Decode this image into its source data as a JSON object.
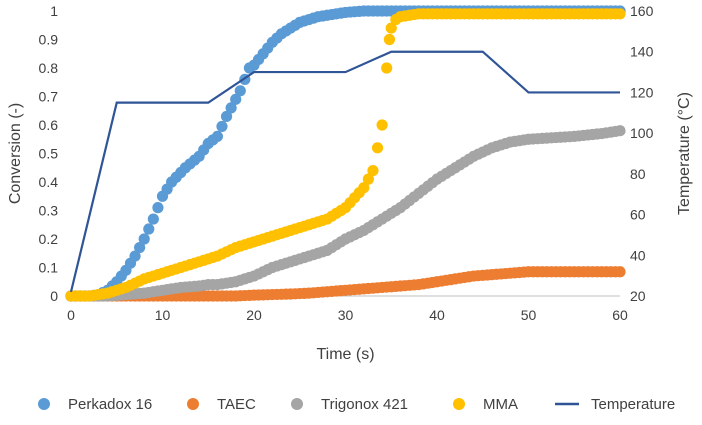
{
  "chart_data": {
    "type": "scatter",
    "xlabel": "Time (s)",
    "ylabel_left": "Conversion (-)",
    "ylabel_right": "Temperature (°C)",
    "xlim": [
      0,
      60
    ],
    "ylim_left": [
      0,
      1
    ],
    "ylim_right": [
      20,
      160
    ],
    "x_ticks": [
      "0",
      "10",
      "20",
      "30",
      "40",
      "50",
      "60"
    ],
    "y_left_ticks": [
      "0",
      "0.1",
      "0.2",
      "0.3",
      "0.4",
      "0.5",
      "0.6",
      "0.7",
      "0.8",
      "0.9",
      "1"
    ],
    "y_right_ticks": [
      "20",
      "40",
      "60",
      "80",
      "100",
      "120",
      "140",
      "160"
    ],
    "grid": false,
    "legend_position": "bottom",
    "series": [
      {
        "name": "Perkadox 16",
        "kind": "scatter",
        "axis": "left",
        "color": "#5B9BD5",
        "points": [
          [
            0,
            0
          ],
          [
            1,
            0
          ],
          [
            2,
            0
          ],
          [
            3,
            0.005
          ],
          [
            4,
            0.02
          ],
          [
            5,
            0.05
          ],
          [
            6,
            0.09
          ],
          [
            7,
            0.14
          ],
          [
            8,
            0.2
          ],
          [
            9,
            0.27
          ],
          [
            10,
            0.35
          ],
          [
            11,
            0.4
          ],
          [
            12.5,
            0.45
          ],
          [
            14,
            0.49
          ],
          [
            15,
            0.535
          ],
          [
            16,
            0.56
          ],
          [
            17,
            0.63
          ],
          [
            18.5,
            0.72
          ],
          [
            19.5,
            0.8
          ],
          [
            20,
            0.81
          ],
          [
            21,
            0.85
          ],
          [
            22,
            0.89
          ],
          [
            23,
            0.92
          ],
          [
            24,
            0.94
          ],
          [
            25,
            0.96
          ],
          [
            26,
            0.97
          ],
          [
            27,
            0.98
          ],
          [
            28,
            0.985
          ],
          [
            29,
            0.99
          ],
          [
            30,
            0.995
          ],
          [
            32,
            1
          ],
          [
            35,
            1
          ],
          [
            38,
            1
          ],
          [
            41,
            1
          ],
          [
            44,
            1
          ],
          [
            47,
            1
          ],
          [
            50,
            1
          ],
          [
            55,
            1
          ],
          [
            60,
            1
          ]
        ]
      },
      {
        "name": "TAEC",
        "kind": "scatter",
        "axis": "left",
        "color": "#ED7D31",
        "points": [
          [
            0,
            0
          ],
          [
            2,
            0
          ],
          [
            4,
            0
          ],
          [
            6,
            0
          ],
          [
            8,
            0
          ],
          [
            10,
            0
          ],
          [
            12,
            0
          ],
          [
            14,
            0
          ],
          [
            16,
            0
          ],
          [
            18,
            0
          ],
          [
            20,
            0.003
          ],
          [
            22,
            0.005
          ],
          [
            24,
            0.007
          ],
          [
            26,
            0.01
          ],
          [
            28,
            0.015
          ],
          [
            30,
            0.02
          ],
          [
            32,
            0.025
          ],
          [
            34,
            0.03
          ],
          [
            36,
            0.035
          ],
          [
            38,
            0.04
          ],
          [
            40,
            0.05
          ],
          [
            42,
            0.06
          ],
          [
            44,
            0.07
          ],
          [
            46,
            0.075
          ],
          [
            48,
            0.08
          ],
          [
            50,
            0.085
          ],
          [
            55,
            0.085
          ],
          [
            60,
            0.085
          ]
        ]
      },
      {
        "name": "Trigonox 421",
        "kind": "scatter",
        "axis": "left",
        "color": "#A5A5A5",
        "points": [
          [
            0,
            0
          ],
          [
            2,
            0
          ],
          [
            4,
            0
          ],
          [
            6,
            0.005
          ],
          [
            8,
            0.01
          ],
          [
            10,
            0.02
          ],
          [
            12,
            0.03
          ],
          [
            14,
            0.035
          ],
          [
            15,
            0.04
          ],
          [
            16,
            0.04
          ],
          [
            18,
            0.05
          ],
          [
            20,
            0.07
          ],
          [
            22,
            0.1
          ],
          [
            24,
            0.12
          ],
          [
            26,
            0.14
          ],
          [
            28,
            0.16
          ],
          [
            30,
            0.2
          ],
          [
            32,
            0.23
          ],
          [
            34,
            0.27
          ],
          [
            36,
            0.31
          ],
          [
            38,
            0.36
          ],
          [
            40,
            0.41
          ],
          [
            42,
            0.45
          ],
          [
            44,
            0.49
          ],
          [
            46,
            0.52
          ],
          [
            48,
            0.54
          ],
          [
            50,
            0.55
          ],
          [
            55,
            0.56
          ],
          [
            58,
            0.57
          ],
          [
            60,
            0.58
          ]
        ]
      },
      {
        "name": "MMA",
        "kind": "scatter",
        "axis": "left",
        "color": "#FFC000",
        "points": [
          [
            0,
            0
          ],
          [
            2,
            0
          ],
          [
            4,
            0.01
          ],
          [
            6,
            0.03
          ],
          [
            8,
            0.06
          ],
          [
            10,
            0.08
          ],
          [
            12,
            0.1
          ],
          [
            14,
            0.12
          ],
          [
            15,
            0.13
          ],
          [
            16,
            0.14
          ],
          [
            18,
            0.17
          ],
          [
            20,
            0.19
          ],
          [
            22,
            0.21
          ],
          [
            24,
            0.23
          ],
          [
            26,
            0.25
          ],
          [
            28,
            0.27
          ],
          [
            30,
            0.31
          ],
          [
            32,
            0.38
          ],
          [
            33,
            0.44
          ],
          [
            33.5,
            0.52
          ],
          [
            34,
            0.6
          ],
          [
            34.5,
            0.8
          ],
          [
            34.8,
            0.9
          ],
          [
            35,
            0.94
          ],
          [
            35.5,
            0.97
          ],
          [
            36,
            0.98
          ],
          [
            38,
            0.99
          ],
          [
            40,
            0.99
          ],
          [
            42,
            0.99
          ],
          [
            44,
            0.99
          ],
          [
            46,
            0.99
          ],
          [
            48,
            0.99
          ],
          [
            50,
            0.99
          ],
          [
            55,
            0.99
          ],
          [
            58,
            0.99
          ],
          [
            60,
            0.99
          ]
        ]
      },
      {
        "name": "Temperature",
        "kind": "line",
        "axis": "right",
        "color": "#2F5597",
        "points": [
          [
            0,
            22
          ],
          [
            5,
            115
          ],
          [
            15,
            115
          ],
          [
            20,
            130
          ],
          [
            30,
            130
          ],
          [
            35,
            140
          ],
          [
            45,
            140
          ],
          [
            50,
            120
          ],
          [
            60,
            120
          ]
        ]
      }
    ]
  }
}
